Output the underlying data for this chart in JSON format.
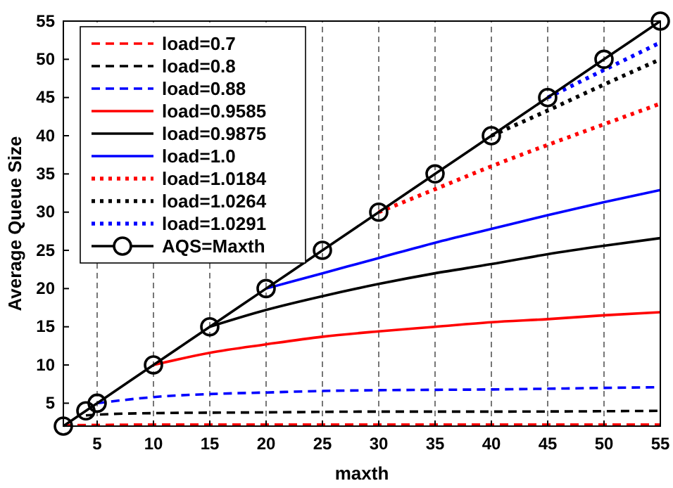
{
  "chart_data": {
    "type": "line",
    "xlabel": "maxth",
    "ylabel": "Average Queue Size",
    "xlim": [
      2,
      55
    ],
    "ylim": [
      2,
      55
    ],
    "xticks": [
      5,
      10,
      15,
      20,
      25,
      30,
      35,
      40,
      45,
      50,
      55
    ],
    "yticks": [
      5,
      10,
      15,
      20,
      25,
      30,
      35,
      40,
      45,
      50,
      55
    ],
    "grid": "x",
    "legend": "top left",
    "series": [
      {
        "name": "load=0.7",
        "color": "#ff0000",
        "line_style": "dashed",
        "marker": "none",
        "x": [
          2,
          10,
          20,
          30,
          40,
          55
        ],
        "values": [
          2.1,
          2.2,
          2.2,
          2.2,
          2.2,
          2.2
        ]
      },
      {
        "name": "load=0.8",
        "color": "#000000",
        "line_style": "dashed",
        "marker": "none",
        "x": [
          4,
          5,
          10,
          20,
          30,
          40,
          55
        ],
        "values": [
          3.4,
          3.5,
          3.7,
          3.8,
          3.9,
          3.9,
          4
        ]
      },
      {
        "name": "load=0.88",
        "color": "#0000ff",
        "line_style": "dashed",
        "marker": "none",
        "x": [
          5,
          10,
          15,
          20,
          25,
          30,
          40,
          50,
          55
        ],
        "values": [
          5,
          5.8,
          6.2,
          6.4,
          6.6,
          6.7,
          6.8,
          7,
          7.1
        ]
      },
      {
        "name": "load=0.9585",
        "color": "#ff0000",
        "line_style": "solid",
        "marker": "none",
        "x": [
          10,
          15,
          20,
          25,
          30,
          35,
          40,
          45,
          50,
          55
        ],
        "values": [
          10,
          11.6,
          12.7,
          13.7,
          14.4,
          15,
          15.6,
          16,
          16.5,
          16.9
        ]
      },
      {
        "name": "load=0.9875",
        "color": "#000000",
        "line_style": "solid",
        "marker": "none",
        "x": [
          15,
          20,
          25,
          30,
          35,
          40,
          45,
          50,
          55
        ],
        "values": [
          15,
          17.2,
          19,
          20.6,
          22,
          23.2,
          24.5,
          25.6,
          26.6
        ]
      },
      {
        "name": "load=1.0",
        "color": "#0000ff",
        "line_style": "solid",
        "marker": "none",
        "x": [
          20,
          25,
          30,
          35,
          40,
          45,
          50,
          55
        ],
        "values": [
          20,
          22,
          24,
          26,
          27.8,
          29.6,
          31.3,
          32.9
        ]
      },
      {
        "name": "load=1.0184",
        "color": "#ff0000",
        "line_style": "dotted",
        "marker": "none",
        "x": [
          30,
          35,
          40,
          45,
          50,
          55
        ],
        "values": [
          30,
          33,
          36,
          38.8,
          41.5,
          44.2
        ]
      },
      {
        "name": "load=1.0264",
        "color": "#000000",
        "line_style": "dotted",
        "marker": "none",
        "x": [
          40,
          45,
          50,
          55
        ],
        "values": [
          40,
          43.3,
          46.7,
          50
        ]
      },
      {
        "name": "load=1.0291",
        "color": "#0000ff",
        "line_style": "dotted",
        "marker": "none",
        "x": [
          45,
          50,
          55
        ],
        "values": [
          45,
          48.6,
          52.2
        ]
      },
      {
        "name": "AQS=Maxth",
        "color": "#000000",
        "line_style": "solid",
        "marker": "circle",
        "x": [
          2,
          4,
          5,
          10,
          15,
          20,
          25,
          30,
          35,
          40,
          45,
          50,
          55
        ],
        "values": [
          2,
          4,
          5,
          10,
          15,
          20,
          25,
          30,
          35,
          40,
          45,
          50,
          55
        ]
      }
    ]
  }
}
